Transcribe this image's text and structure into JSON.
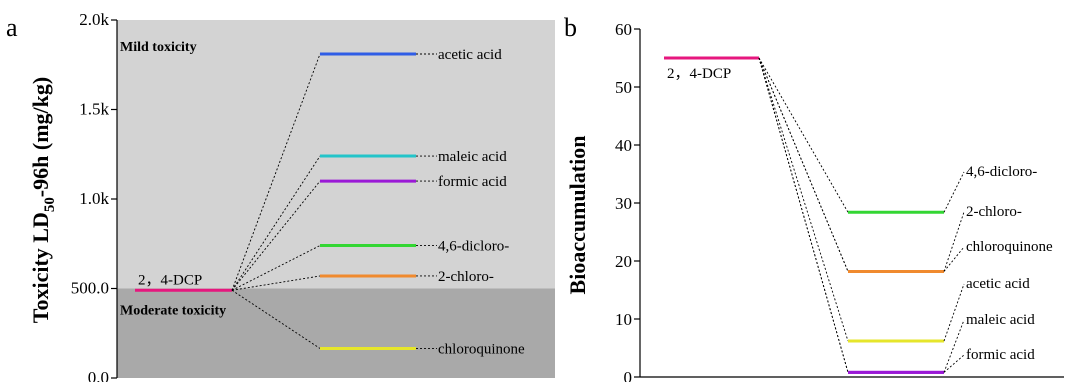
{
  "chart_data": [
    {
      "type": "energy-level",
      "panel_label": "a",
      "ylabel": "Toxicity LD50-96h (mg/kg)",
      "ylabel_main": "Toxicity LD",
      "ylabel_sub": "50",
      "ylabel_rest": "-96h (mg/kg)",
      "ylim": [
        0,
        2000
      ],
      "y_ticks": [
        0,
        500,
        1000,
        1500,
        2000
      ],
      "y_tick_labels": [
        "0.0",
        "500.0",
        "1.0k",
        "1.5k",
        "2.0k"
      ],
      "zones": [
        {
          "label": "Mild toxicity",
          "from": 500,
          "to": 2000,
          "color": "#d3d3d3"
        },
        {
          "label": "Moderate toxicity",
          "from": 0,
          "to": 500,
          "color": "#a9a9a9"
        }
      ],
      "parent": {
        "name": "2，4-DCP",
        "value": 490,
        "color": "#e6177e"
      },
      "products": [
        {
          "name": "acetic acid",
          "value": 1810,
          "color": "#2f5de6"
        },
        {
          "name": "maleic acid",
          "value": 1240,
          "color": "#23c4c9"
        },
        {
          "name": "formic acid",
          "value": 1100,
          "color": "#9a19d6"
        },
        {
          "name": "4,6-dicloro-",
          "value": 740,
          "color": "#33d633"
        },
        {
          "name": "2-chloro-",
          "value": 570,
          "color": "#f08a2e"
        },
        {
          "name": "chloroquinone",
          "value": 165,
          "color": "#e6e62b"
        }
      ]
    },
    {
      "type": "energy-level",
      "panel_label": "b",
      "ylabel": "Bioaccumulation",
      "ylim": [
        0,
        60
      ],
      "y_ticks": [
        0,
        10,
        20,
        30,
        40,
        50,
        60
      ],
      "y_tick_labels": [
        "0",
        "10",
        "20",
        "30",
        "40",
        "50",
        "60"
      ],
      "parent": {
        "name": "2，4-DCP",
        "value": 55,
        "color": "#e6177e"
      },
      "products": [
        {
          "name": "4,6-dicloro-",
          "value": 28.4,
          "color": "#33d633"
        },
        {
          "name": "2-chloro-",
          "value": 18.2,
          "color": "#f08a2e"
        },
        {
          "name": "chloroquinone",
          "value": 18.2,
          "color": "#f08a2e"
        },
        {
          "name": "acetic acid",
          "value": 6.2,
          "color": "#e6e62b"
        },
        {
          "name": "maleic acid",
          "value": 0.8,
          "color": "#9a19d6"
        },
        {
          "name": "formic acid",
          "value": 0.8,
          "color": "#9a19d6"
        }
      ]
    }
  ]
}
